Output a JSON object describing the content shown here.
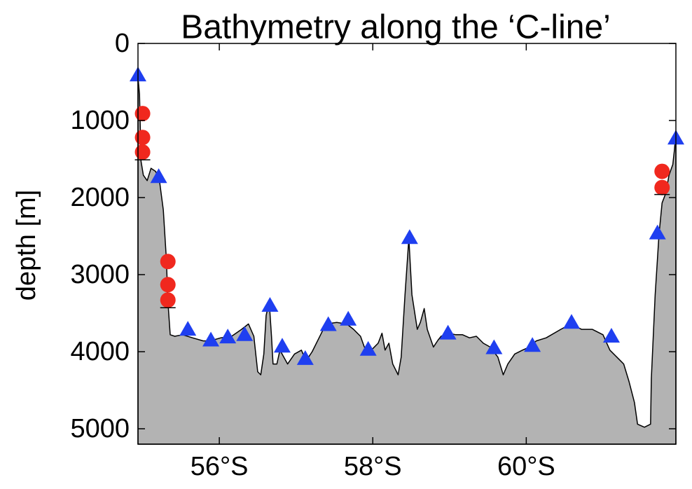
{
  "chart_data": {
    "type": "area",
    "title": "Bathymetry along the ‘C-line’",
    "ylabel": "depth [m]",
    "xlim": [
      54.94,
      61.95
    ],
    "ylim": [
      0,
      5200
    ],
    "y_inverted": true,
    "xticks": [
      {
        "value": 56,
        "label": "56°S"
      },
      {
        "value": 58,
        "label": "58°S"
      },
      {
        "value": 60,
        "label": "60°S"
      }
    ],
    "yticks": [
      0,
      1000,
      2000,
      3000,
      4000,
      5000
    ],
    "profile": {
      "color": "#b3b3b3",
      "x": [
        54.94,
        54.96,
        54.98,
        55.01,
        55.06,
        55.11,
        55.17,
        55.22,
        55.27,
        55.31,
        55.33,
        55.36,
        55.42,
        55.52,
        55.65,
        55.79,
        55.88,
        56.02,
        56.16,
        56.29,
        56.38,
        56.45,
        56.5,
        56.54,
        56.58,
        56.61,
        56.65,
        56.68,
        56.7,
        56.75,
        56.79,
        56.89,
        56.98,
        57.07,
        57.13,
        57.21,
        57.3,
        57.39,
        57.53,
        57.66,
        57.75,
        57.84,
        57.89,
        57.98,
        58.07,
        58.12,
        58.16,
        58.21,
        58.26,
        58.33,
        58.37,
        58.42,
        58.47,
        58.51,
        58.58,
        58.62,
        58.67,
        58.71,
        58.79,
        58.85,
        58.89,
        58.99,
        59.08,
        59.17,
        59.26,
        59.35,
        59.44,
        59.53,
        59.63,
        59.7,
        59.76,
        59.85,
        59.95,
        60.04,
        60.13,
        60.26,
        60.45,
        60.58,
        60.72,
        60.86,
        61.0,
        61.09,
        61.18,
        61.27,
        61.34,
        61.41,
        61.45,
        61.54,
        61.62,
        61.63,
        61.68,
        61.73,
        61.77,
        61.82,
        61.86,
        61.91,
        61.93,
        61.95
      ],
      "values": [
        440,
        660,
        1530,
        1710,
        1780,
        1620,
        1660,
        1780,
        2160,
        2800,
        3350,
        3780,
        3800,
        3780,
        3820,
        3860,
        3860,
        3820,
        3800,
        3710,
        3640,
        3800,
        4260,
        4300,
        4030,
        3530,
        3350,
        3800,
        4160,
        4160,
        3980,
        4160,
        4030,
        3980,
        4120,
        4000,
        3820,
        3640,
        3620,
        3640,
        3710,
        3800,
        3940,
        3980,
        3890,
        3760,
        3980,
        3890,
        4160,
        4300,
        4070,
        3260,
        2530,
        3260,
        3710,
        3620,
        3440,
        3710,
        3940,
        3850,
        3800,
        3760,
        3780,
        3780,
        3820,
        3800,
        3890,
        3940,
        4070,
        4300,
        4160,
        4030,
        3980,
        3940,
        3860,
        3820,
        3710,
        3640,
        3710,
        3710,
        3780,
        3980,
        4070,
        4160,
        4390,
        4660,
        4940,
        4980,
        4940,
        4350,
        3260,
        2480,
        2070,
        1940,
        1710,
        1570,
        1390,
        1160
      ]
    },
    "series": [
      {
        "marker": "triangle",
        "color": "#1f3ff0",
        "x": [
          54.94,
          55.21,
          55.59,
          55.89,
          56.11,
          56.33,
          56.66,
          56.82,
          57.12,
          57.42,
          57.68,
          57.94,
          58.48,
          58.98,
          59.58,
          60.08,
          60.59,
          61.11,
          61.71,
          61.95
        ],
        "values": [
          410,
          1730,
          3710,
          3850,
          3810,
          3780,
          3400,
          3930,
          4090,
          3650,
          3580,
          3970,
          2520,
          3760,
          3950,
          3920,
          3620,
          3800,
          2460,
          1230
        ]
      },
      {
        "marker": "circle",
        "color": "#f0281e",
        "x": [
          55.0,
          55.0,
          55.0,
          55.33,
          55.33,
          55.33,
          61.77,
          61.77
        ],
        "values": [
          910,
          1220,
          1410,
          2830,
          3130,
          3330,
          1660,
          1870
        ]
      },
      {
        "marker": "dash",
        "color": "#000000",
        "x": [
          55.0,
          55.33,
          61.77
        ],
        "values": [
          1510,
          3430,
          1960
        ]
      }
    ]
  }
}
